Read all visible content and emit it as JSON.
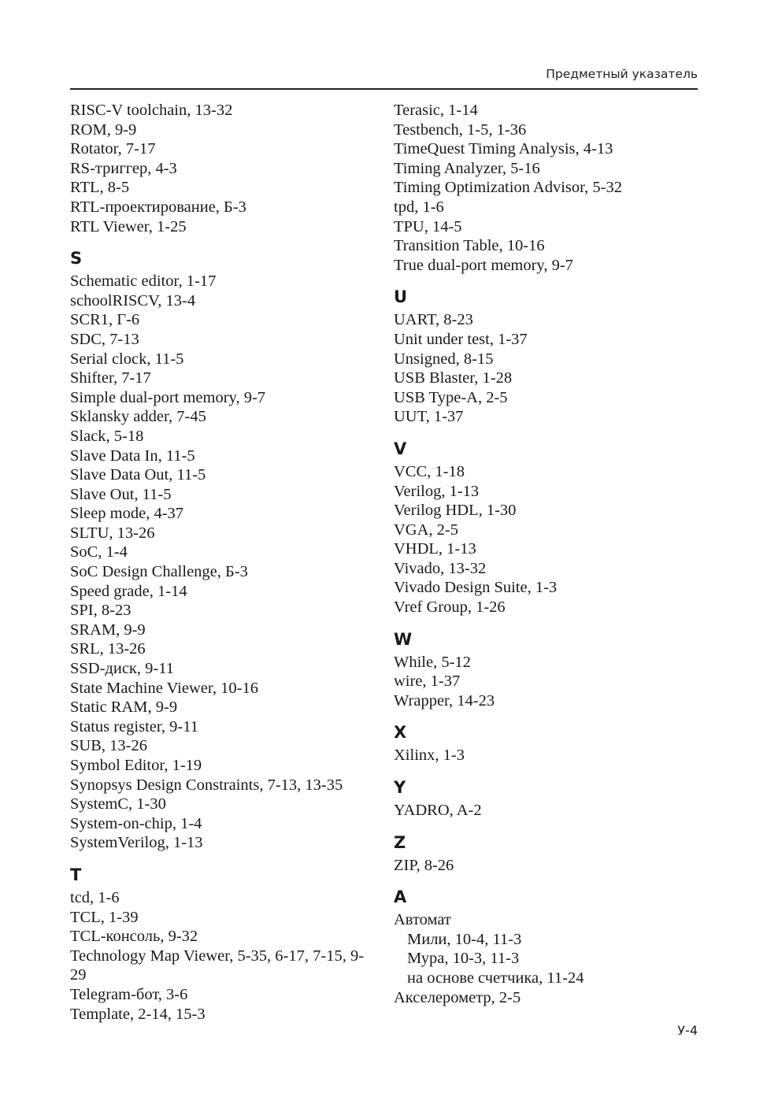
{
  "header": {
    "running_title": "Предметный указатель"
  },
  "footer": {
    "page_number": "У-4"
  },
  "columns": [
    {
      "groups": [
        {
          "letter": null,
          "entries": [
            {
              "text": "RISC-V toolchain, 13-32"
            },
            {
              "text": "ROM, 9-9"
            },
            {
              "text": "Rotator, 7-17"
            },
            {
              "text": "RS-триггер, 4-3"
            },
            {
              "text": "RTL, 8-5"
            },
            {
              "text": "RTL-проектирование, Б-3"
            },
            {
              "text": "RTL Viewer, 1-25"
            }
          ]
        },
        {
          "letter": "S",
          "entries": [
            {
              "text": "Schematic editor, 1-17"
            },
            {
              "text": "schoolRISCV, 13-4"
            },
            {
              "text": "SCR1, Г-6"
            },
            {
              "text": "SDC, 7-13"
            },
            {
              "text": "Serial clock, 11-5"
            },
            {
              "text": "Shifter, 7-17"
            },
            {
              "text": "Simple dual-port memory, 9-7"
            },
            {
              "text": "Sklansky adder, 7-45"
            },
            {
              "text": "Slack, 5-18"
            },
            {
              "text": "Slave Data In, 11-5"
            },
            {
              "text": "Slave Data Out, 11-5"
            },
            {
              "text": "Slave Out, 11-5"
            },
            {
              "text": "Sleep mode, 4-37"
            },
            {
              "text": "SLTU, 13-26"
            },
            {
              "text": "SoC, 1-4"
            },
            {
              "text": "SoC Design Challenge, Б-3"
            },
            {
              "text": "Speed grade, 1-14"
            },
            {
              "text": "SPI, 8-23"
            },
            {
              "text": "SRAM, 9-9"
            },
            {
              "text": "SRL, 13-26"
            },
            {
              "text": "SSD-диск, 9-11"
            },
            {
              "text": "State Machine Viewer, 10-16"
            },
            {
              "text": "Static RAM, 9-9"
            },
            {
              "text": "Status register, 9-11"
            },
            {
              "text": "SUB, 13-26"
            },
            {
              "text": "Symbol Editor, 1-19"
            },
            {
              "text": "Synopsys Design Constraints, 7-13, 13-35"
            },
            {
              "text": "SystemC, 1-30"
            },
            {
              "text": "System-on-chip, 1-4"
            },
            {
              "text": "SystemVerilog, 1-13"
            }
          ]
        },
        {
          "letter": "T",
          "entries": [
            {
              "text": "tcd, 1-6"
            },
            {
              "text": "TCL, 1-39"
            },
            {
              "text": "TCL-консоль, 9-32"
            },
            {
              "text": "Technology Map Viewer, 5-35, 6-17, 7-15, 9-29"
            },
            {
              "text": "Telegram-бот, 3-6"
            },
            {
              "text": "Template, 2-14, 15-3"
            }
          ]
        }
      ]
    },
    {
      "groups": [
        {
          "letter": null,
          "entries": [
            {
              "text": "Terasic, 1-14"
            },
            {
              "text": "Testbench, 1-5, 1-36"
            },
            {
              "text": "TimeQuest Timing Analysis, 4-13"
            },
            {
              "text": "Timing Analyzer, 5-16"
            },
            {
              "text": "Timing Optimization Advisor, 5-32"
            },
            {
              "text": "tpd, 1-6"
            },
            {
              "text": "TPU, 14-5"
            },
            {
              "text": "Transition Table, 10-16"
            },
            {
              "text": "True dual-port memory, 9-7"
            }
          ]
        },
        {
          "letter": "U",
          "entries": [
            {
              "text": "UART, 8-23"
            },
            {
              "text": "Unit under test, 1-37"
            },
            {
              "text": "Unsigned, 8-15"
            },
            {
              "text": "USB Blaster, 1-28"
            },
            {
              "text": "USB Type-A, 2-5"
            },
            {
              "text": "UUT, 1-37"
            }
          ]
        },
        {
          "letter": "V",
          "entries": [
            {
              "text": "VCC, 1-18"
            },
            {
              "text": "Verilog, 1-13"
            },
            {
              "text": "Verilog HDL, 1-30"
            },
            {
              "text": "VGA, 2-5"
            },
            {
              "text": "VHDL, 1-13"
            },
            {
              "text": "Vivado, 13-32"
            },
            {
              "text": "Vivado Design Suite, 1-3"
            },
            {
              "text": "Vref Group, 1-26"
            }
          ]
        },
        {
          "letter": "W",
          "entries": [
            {
              "text": "While, 5-12"
            },
            {
              "text": "wire, 1-37"
            },
            {
              "text": "Wrapper, 14-23"
            }
          ]
        },
        {
          "letter": "X",
          "entries": [
            {
              "text": "Xilinx, 1-3"
            }
          ]
        },
        {
          "letter": "Y",
          "entries": [
            {
              "text": "YADRO, A-2"
            }
          ]
        },
        {
          "letter": "Z",
          "entries": [
            {
              "text": "ZIP, 8-26"
            }
          ]
        },
        {
          "letter": "А",
          "entries": [
            {
              "text": "Автомат"
            },
            {
              "text": "Мили, 10-4, 11-3",
              "sub": true
            },
            {
              "text": "Мура, 10-3, 11-3",
              "sub": true
            },
            {
              "text": "на основе счетчика, 11-24",
              "sub": true
            },
            {
              "text": "Акселерометр, 2-5"
            }
          ]
        }
      ]
    }
  ]
}
